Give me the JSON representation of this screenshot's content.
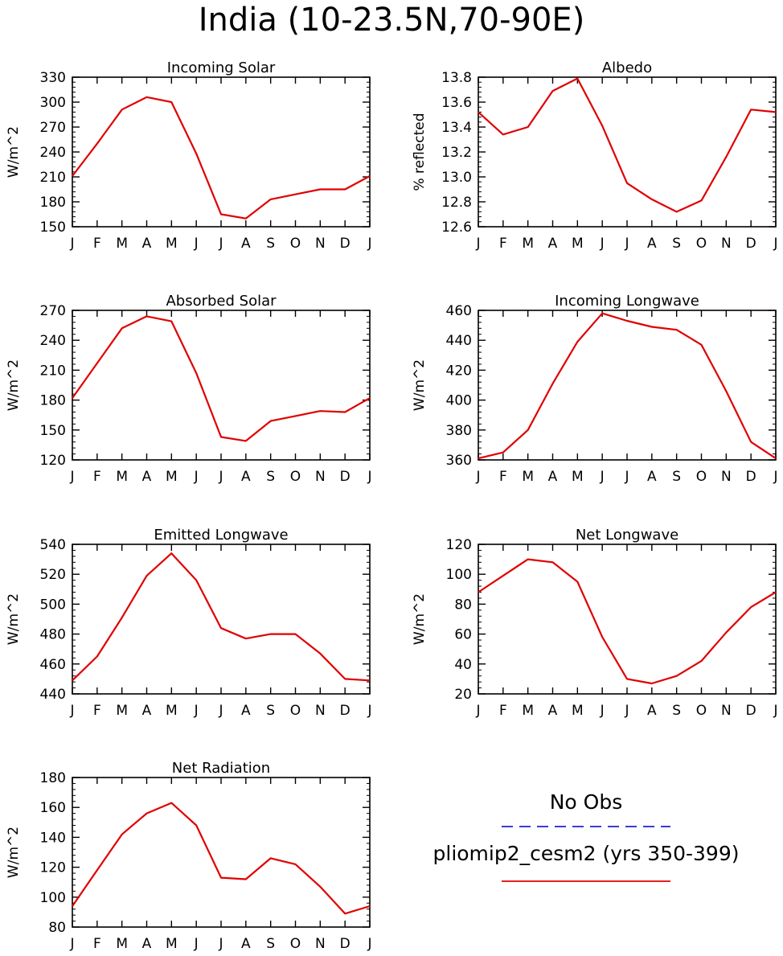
{
  "figure_title": "India (10-23.5N,70-90E)",
  "months": [
    "J",
    "F",
    "M",
    "A",
    "M",
    "J",
    "J",
    "A",
    "S",
    "O",
    "N",
    "D",
    "J"
  ],
  "chart_data": [
    {
      "type": "line",
      "title": "Incoming Solar",
      "ylabel": "W/m^2",
      "ylim": [
        150,
        330
      ],
      "yticks": [
        150,
        180,
        210,
        240,
        270,
        300,
        330
      ],
      "ytick_labels": [
        "150",
        "180",
        "210",
        "240",
        "270",
        "300",
        "330"
      ],
      "values": [
        211,
        250,
        291,
        306,
        300,
        238,
        165,
        160,
        183,
        189,
        195,
        195,
        211
      ]
    },
    {
      "type": "line",
      "title": "Albedo",
      "ylabel": "% reflected",
      "ylim": [
        12.6,
        13.8
      ],
      "yticks": [
        12.6,
        12.8,
        13.0,
        13.2,
        13.4,
        13.6,
        13.8
      ],
      "ytick_labels": [
        "12.6",
        "12.8",
        "13.0",
        "13.2",
        "13.4",
        "13.6",
        "13.8"
      ],
      "values": [
        13.52,
        13.34,
        13.4,
        13.69,
        13.79,
        13.41,
        12.95,
        12.82,
        12.72,
        12.81,
        13.16,
        13.54,
        13.52
      ]
    },
    {
      "type": "line",
      "title": "Absorbed Solar",
      "ylabel": "W/m^2",
      "ylim": [
        120,
        270
      ],
      "yticks": [
        120,
        150,
        180,
        210,
        240,
        270
      ],
      "ytick_labels": [
        "120",
        "150",
        "180",
        "210",
        "240",
        "270"
      ],
      "values": [
        182,
        217,
        252,
        264,
        259,
        207,
        143,
        139,
        159,
        164,
        169,
        168,
        182
      ]
    },
    {
      "type": "line",
      "title": "Incoming Longwave",
      "ylabel": "W/m^2",
      "ylim": [
        360,
        460
      ],
      "yticks": [
        360,
        380,
        400,
        420,
        440,
        460
      ],
      "ytick_labels": [
        "360",
        "380",
        "400",
        "420",
        "440",
        "460"
      ],
      "values": [
        361,
        365,
        380,
        411,
        439,
        458,
        453,
        449,
        447,
        437,
        406,
        372,
        361
      ]
    },
    {
      "type": "line",
      "title": "Emitted Longwave",
      "ylabel": "W/m^2",
      "ylim": [
        440,
        540
      ],
      "yticks": [
        440,
        460,
        480,
        500,
        520,
        540
      ],
      "ytick_labels": [
        "440",
        "460",
        "480",
        "500",
        "520",
        "540"
      ],
      "values": [
        449,
        465,
        491,
        519,
        534,
        516,
        484,
        477,
        480,
        480,
        467,
        450,
        449
      ]
    },
    {
      "type": "line",
      "title": "Net Longwave",
      "ylabel": "W/m^2",
      "ylim": [
        20,
        120
      ],
      "yticks": [
        20,
        40,
        60,
        80,
        100,
        120
      ],
      "ytick_labels": [
        "20",
        "40",
        "60",
        "80",
        "100",
        "120"
      ],
      "values": [
        88,
        99,
        110,
        108,
        95,
        58,
        30,
        27,
        32,
        42,
        61,
        78,
        88
      ]
    },
    {
      "type": "line",
      "title": "Net Radiation",
      "ylabel": "W/m^2",
      "ylim": [
        80,
        180
      ],
      "yticks": [
        80,
        100,
        120,
        140,
        160,
        180
      ],
      "ytick_labels": [
        "80",
        "100",
        "120",
        "140",
        "160",
        "180"
      ],
      "values": [
        94,
        118,
        142,
        156,
        163,
        148,
        113,
        112,
        126,
        122,
        107,
        89,
        94
      ]
    }
  ],
  "legend": {
    "no_obs_label": "No Obs",
    "no_obs_color": "#2020d0",
    "model_label": "pliomip2_cesm2 (yrs 350-399)",
    "model_color": "#e00000"
  },
  "line_color": "#e00000"
}
